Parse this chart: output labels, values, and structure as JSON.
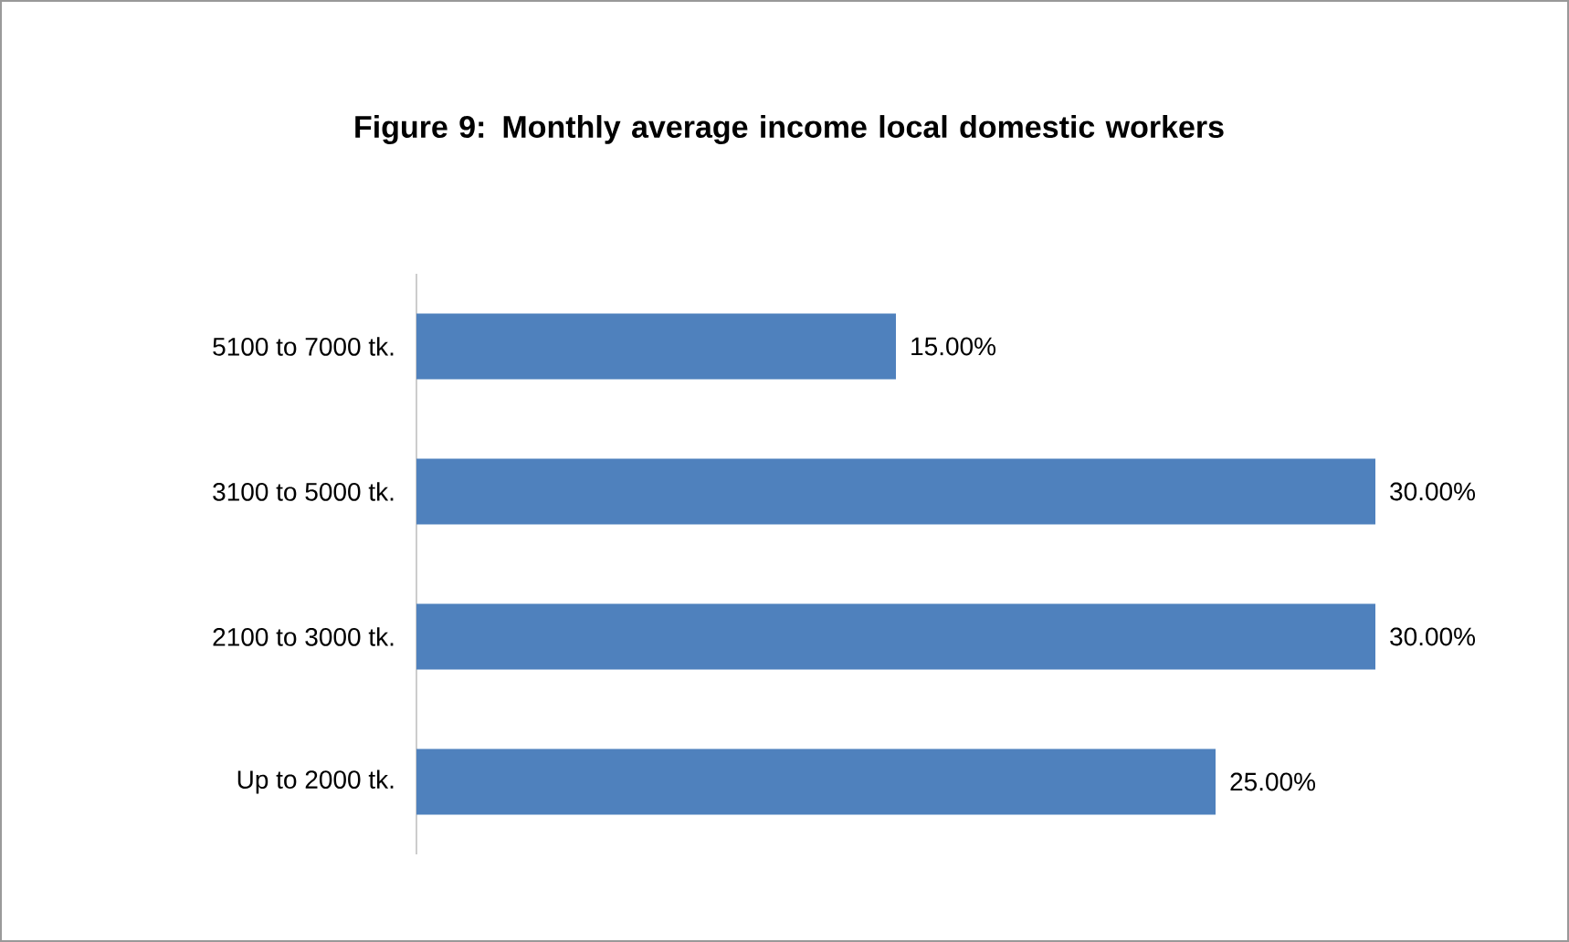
{
  "chart_data": {
    "type": "bar",
    "orientation": "horizontal",
    "title": "Figure 9: Monthly average income local domestic workers",
    "categories": [
      "5100 to 7000 tk.",
      "3100 to 5000 tk.",
      "2100 to 3000 tk.",
      "Up to 2000 tk."
    ],
    "values": [
      15,
      30,
      30,
      25
    ],
    "value_labels": [
      "15.00%",
      "30.00%",
      "30.00%",
      "25.00%"
    ],
    "color": "#4f81bd"
  }
}
